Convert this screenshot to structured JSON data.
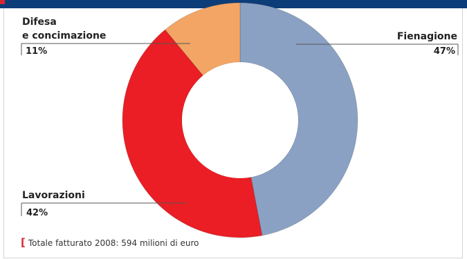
{
  "colors": {
    "header": "#0d3d79",
    "accent": "#d9272e"
  },
  "chart_data": {
    "type": "pie",
    "donut": true,
    "slices": [
      {
        "name": "Fienagione",
        "value": 47,
        "label": "47%",
        "color": "#8aa1c3"
      },
      {
        "name": "Lavorazioni",
        "value": 42,
        "label": "42%",
        "color": "#ea1e24"
      },
      {
        "name": "Difesa e concimazione",
        "name_lines": [
          "Difesa",
          "e concimazione"
        ],
        "value": 11,
        "label": "11%",
        "color": "#f3a565"
      }
    ],
    "note": "Totale fatturato 2008: 594 milioni di euro"
  }
}
